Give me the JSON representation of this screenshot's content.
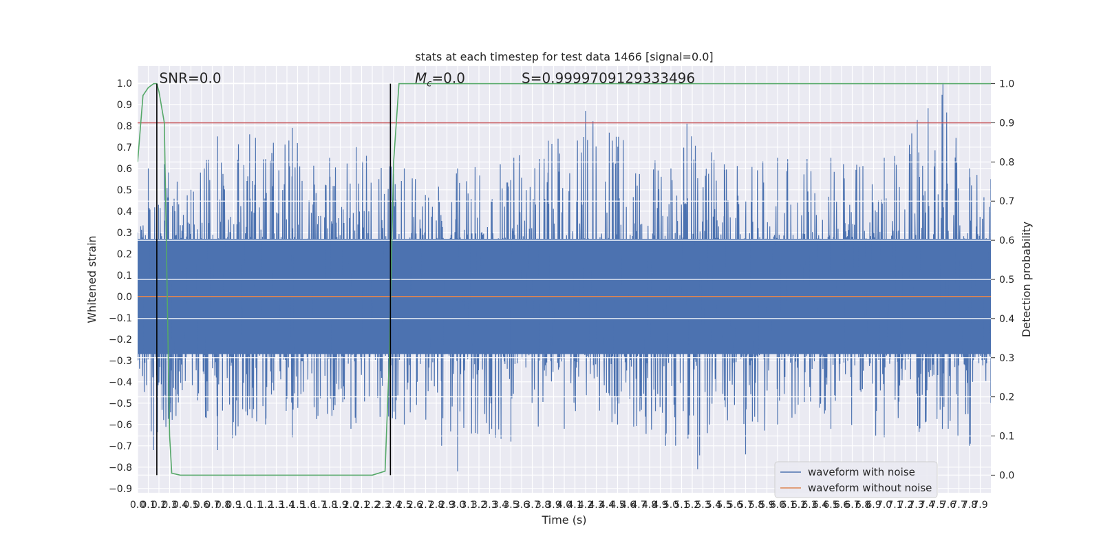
{
  "chart_data": {
    "type": "line",
    "title": "stats at each timestep for test data 1466 [signal=0.0]",
    "xlabel": "Time (s)",
    "ylabel": "Whitened strain",
    "ylabel_right": "Detection probability",
    "xlim": [
      0.0,
      8.0
    ],
    "ylim": [
      -0.92,
      1.08
    ],
    "ylim_right": [
      -0.045,
      1.045
    ],
    "x_ticks": [
      0.0,
      0.1,
      0.2,
      0.3,
      0.4,
      0.5,
      0.6,
      0.7,
      0.8,
      0.9,
      1.0,
      1.1,
      1.2,
      1.3,
      1.4,
      1.5,
      1.6,
      1.7,
      1.8,
      1.9,
      2.0,
      2.1,
      2.2,
      2.3,
      2.4,
      2.5,
      2.6,
      2.7,
      2.8,
      2.9,
      3.0,
      3.1,
      3.2,
      3.3,
      3.4,
      3.5,
      3.6,
      3.7,
      3.8,
      3.9,
      4.0,
      4.1,
      4.2,
      4.3,
      4.4,
      4.5,
      4.6,
      4.7,
      4.8,
      4.9,
      5.0,
      5.1,
      5.2,
      5.3,
      5.4,
      5.5,
      5.6,
      5.7,
      5.8,
      5.9,
      6.0,
      6.1,
      6.2,
      6.3,
      6.4,
      6.5,
      6.6,
      6.7,
      6.8,
      6.9,
      7.0,
      7.1,
      7.2,
      7.3,
      7.4,
      7.5,
      7.6,
      7.7,
      7.8,
      7.9
    ],
    "y_ticks": [
      -0.9,
      -0.8,
      -0.7,
      -0.6,
      -0.5,
      -0.4,
      -0.3,
      -0.2,
      -0.1,
      0.0,
      0.1,
      0.2,
      0.3,
      0.4,
      0.5,
      0.6,
      0.7,
      0.8,
      0.9,
      1.0
    ],
    "y_ticks_right": [
      0.0,
      0.1,
      0.2,
      0.3,
      0.4,
      0.5,
      0.6,
      0.7,
      0.8,
      0.9,
      1.0
    ],
    "grid": true,
    "legend_position": "lower-right",
    "series": [
      {
        "name": "waveform with noise",
        "color": "#4c72b0",
        "axis": "left",
        "style": "dense noise",
        "envelope": {
          "max_positive": [
            [
              0.0,
              0.3
            ],
            [
              0.1,
              0.6
            ],
            [
              0.25,
              0.62
            ],
            [
              0.5,
              0.5
            ],
            [
              0.75,
              0.75
            ],
            [
              1.05,
              0.76
            ],
            [
              1.45,
              0.79
            ],
            [
              1.8,
              0.65
            ],
            [
              2.05,
              0.7
            ],
            [
              2.5,
              0.6
            ],
            [
              3.0,
              0.6
            ],
            [
              3.4,
              0.62
            ],
            [
              3.85,
              0.73
            ],
            [
              4.2,
              0.87
            ],
            [
              5.0,
              0.6
            ],
            [
              5.15,
              0.81
            ],
            [
              5.5,
              0.62
            ],
            [
              6.0,
              0.65
            ],
            [
              6.5,
              0.65
            ],
            [
              7.0,
              0.65
            ],
            [
              7.55,
              1.0
            ],
            [
              7.8,
              0.6
            ],
            [
              8.0,
              0.55
            ]
          ],
          "min_negative": [
            [
              0.0,
              -0.3
            ],
            [
              0.15,
              -0.72
            ],
            [
              0.3,
              -0.6
            ],
            [
              0.75,
              -0.72
            ],
            [
              1.2,
              -0.6
            ],
            [
              1.45,
              -0.66
            ],
            [
              2.0,
              -0.62
            ],
            [
              2.5,
              -0.6
            ],
            [
              2.85,
              -0.7
            ],
            [
              3.0,
              -0.82
            ],
            [
              3.5,
              -0.68
            ],
            [
              4.0,
              -0.62
            ],
            [
              4.5,
              -0.6
            ],
            [
              4.95,
              -0.7
            ],
            [
              5.25,
              -0.81
            ],
            [
              5.7,
              -0.74
            ],
            [
              6.0,
              -0.6
            ],
            [
              6.5,
              -0.62
            ],
            [
              7.0,
              -0.66
            ],
            [
              7.6,
              -0.62
            ],
            [
              7.8,
              -0.7
            ],
            [
              8.0,
              -0.5
            ]
          ],
          "dense_band": [
            -0.27,
            0.27
          ]
        }
      },
      {
        "name": "waveform without noise",
        "color": "#dd8452",
        "axis": "left",
        "x": [
          0.0,
          8.0
        ],
        "y": [
          0.0,
          0.0
        ]
      },
      {
        "name": "",
        "color": "#55a868",
        "axis": "right",
        "x": [
          0.0,
          0.05,
          0.1,
          0.15,
          0.18,
          0.2,
          0.25,
          0.3,
          0.32,
          0.4,
          0.6,
          1.0,
          1.5,
          2.0,
          2.2,
          2.32,
          2.36,
          2.4,
          2.45,
          2.55,
          3.0,
          4.0,
          5.0,
          6.0,
          7.0,
          8.0
        ],
        "y": [
          0.8,
          0.97,
          0.99,
          1.0,
          1.0,
          0.98,
          0.9,
          0.1,
          0.005,
          0.0,
          0.0,
          0.0,
          0.0,
          0.0,
          0.0,
          0.01,
          0.3,
          0.8,
          1.0,
          1.0,
          1.0,
          1.0,
          1.0,
          1.0,
          1.0,
          1.0
        ]
      }
    ],
    "hlines": [
      {
        "axis": "right",
        "y": 0.9,
        "color": "#c44e52"
      }
    ],
    "vlines": [
      {
        "x": 0.18,
        "y_range": [
          0.0,
          1.0
        ],
        "color": "#000000"
      },
      {
        "x": 2.37,
        "y_range": [
          0.0,
          1.0
        ],
        "color": "#000000"
      }
    ],
    "annotations": [
      {
        "text": "SNR=0.0",
        "x": 0.19,
        "y": 1.0
      },
      {
        "text_main": "M",
        "text_sub": "c",
        "text_rest": "=0.0",
        "x": 2.6,
        "y": 1.0
      },
      {
        "text": "S=0.9999709129333496",
        "x": 3.6,
        "y": 1.0
      }
    ]
  }
}
